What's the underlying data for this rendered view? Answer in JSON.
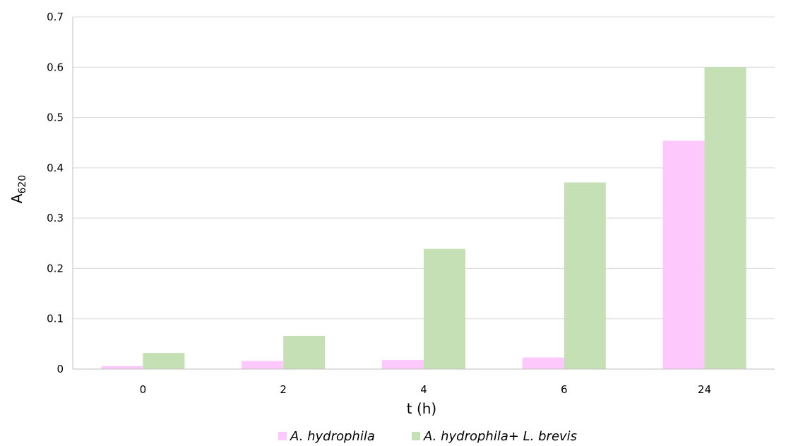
{
  "chart_data": {
    "type": "bar",
    "categories": [
      "0",
      "2",
      "4",
      "6",
      "24"
    ],
    "series": [
      {
        "name": "A. hydrophila",
        "color": "#fdc8fb",
        "values": [
          0.006,
          0.016,
          0.018,
          0.023,
          0.454
        ]
      },
      {
        "name": "A. hydrophila+ L. brevis",
        "color": "#c5e0b4",
        "values": [
          0.032,
          0.066,
          0.239,
          0.371,
          0.6
        ]
      }
    ],
    "xlabel": "t (h)",
    "ylabel": {
      "main": "A",
      "sub": "620"
    },
    "ylim": [
      0,
      0.7
    ],
    "yticks": [
      "0",
      "0.1",
      "0.2",
      "0.3",
      "0.4",
      "0.5",
      "0.6",
      "0.7"
    ],
    "grid": true,
    "legend_position": "bottom"
  }
}
